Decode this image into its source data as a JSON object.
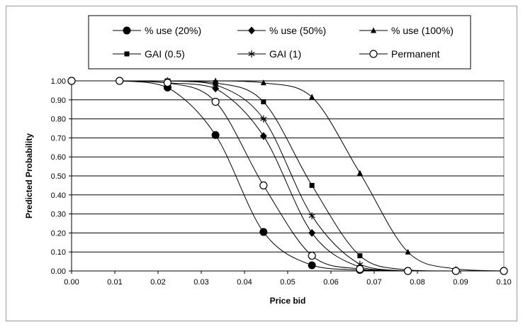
{
  "chart_data": {
    "type": "line",
    "title": "",
    "xlabel": "Price bid",
    "ylabel": "Predicted Probability",
    "xlim": [
      0,
      0.1
    ],
    "ylim": [
      0,
      1
    ],
    "x_ticks": [
      "0.00",
      "0.01",
      "0.02",
      "0.03",
      "0.04",
      "0.05",
      "0.06",
      "0.07",
      "0.08",
      "0.09",
      "0.10"
    ],
    "y_ticks": [
      "0.00",
      "0.10",
      "0.20",
      "0.30",
      "0.40",
      "0.50",
      "0.60",
      "0.70",
      "0.80",
      "0.90",
      "1.00"
    ],
    "grid": "horizontal",
    "legend_position": "top",
    "series": [
      {
        "name": "% use (20%)",
        "marker": "circle-filled",
        "color": "#000000",
        "x": [
          0.0,
          0.0111,
          0.0222,
          0.0333,
          0.0444,
          0.0556,
          0.0667,
          0.0778,
          0.0889,
          0.1
        ],
        "values": [
          1.0,
          1.0,
          0.965,
          0.715,
          0.205,
          0.03,
          0.005,
          0.0,
          0.0,
          0.0
        ]
      },
      {
        "name": "% use (50%)",
        "marker": "diamond-filled",
        "color": "#000000",
        "x": [
          0.0,
          0.0111,
          0.0222,
          0.0333,
          0.0444,
          0.0556,
          0.0667,
          0.0778,
          0.0889,
          0.1
        ],
        "values": [
          1.0,
          1.0,
          0.99,
          0.96,
          0.71,
          0.2,
          0.02,
          0.0,
          0.0,
          0.0
        ]
      },
      {
        "name": "% use (100%)",
        "marker": "triangle-filled",
        "color": "#000000",
        "x": [
          0.0,
          0.0111,
          0.0222,
          0.0333,
          0.0444,
          0.0556,
          0.0667,
          0.0778,
          0.0889,
          0.1
        ],
        "values": [
          1.0,
          1.0,
          1.0,
          1.0,
          0.99,
          0.915,
          0.515,
          0.1,
          0.01,
          0.0
        ]
      },
      {
        "name": "GAI (0.5)",
        "marker": "square-filled",
        "color": "#000000",
        "x": [
          0.0,
          0.0111,
          0.0222,
          0.0333,
          0.0444,
          0.0556,
          0.0667,
          0.0778,
          0.0889,
          0.1
        ],
        "values": [
          1.0,
          1.0,
          1.0,
          0.99,
          0.89,
          0.45,
          0.08,
          0.005,
          0.0,
          0.0
        ]
      },
      {
        "name": "GAI (1)",
        "marker": "asterisk",
        "color": "#000000",
        "x": [
          0.0,
          0.0111,
          0.0222,
          0.0333,
          0.0444,
          0.0556,
          0.0667,
          0.0778,
          0.0889,
          0.1
        ],
        "values": [
          1.0,
          1.0,
          1.0,
          0.98,
          0.8,
          0.29,
          0.035,
          0.0,
          0.0,
          0.0
        ]
      },
      {
        "name": "Permanent",
        "marker": "circle-open",
        "color": "#000000",
        "x": [
          0.0,
          0.0111,
          0.0222,
          0.0333,
          0.0444,
          0.0556,
          0.0667,
          0.0778,
          0.0889,
          0.1
        ],
        "values": [
          1.0,
          1.0,
          0.99,
          0.89,
          0.45,
          0.08,
          0.01,
          0.0,
          0.0,
          0.0
        ]
      }
    ]
  },
  "colors": {
    "plot_background": "#ffffff",
    "gridline": "#000000",
    "frame_border": "#9a9a9a",
    "line": "#000000"
  }
}
